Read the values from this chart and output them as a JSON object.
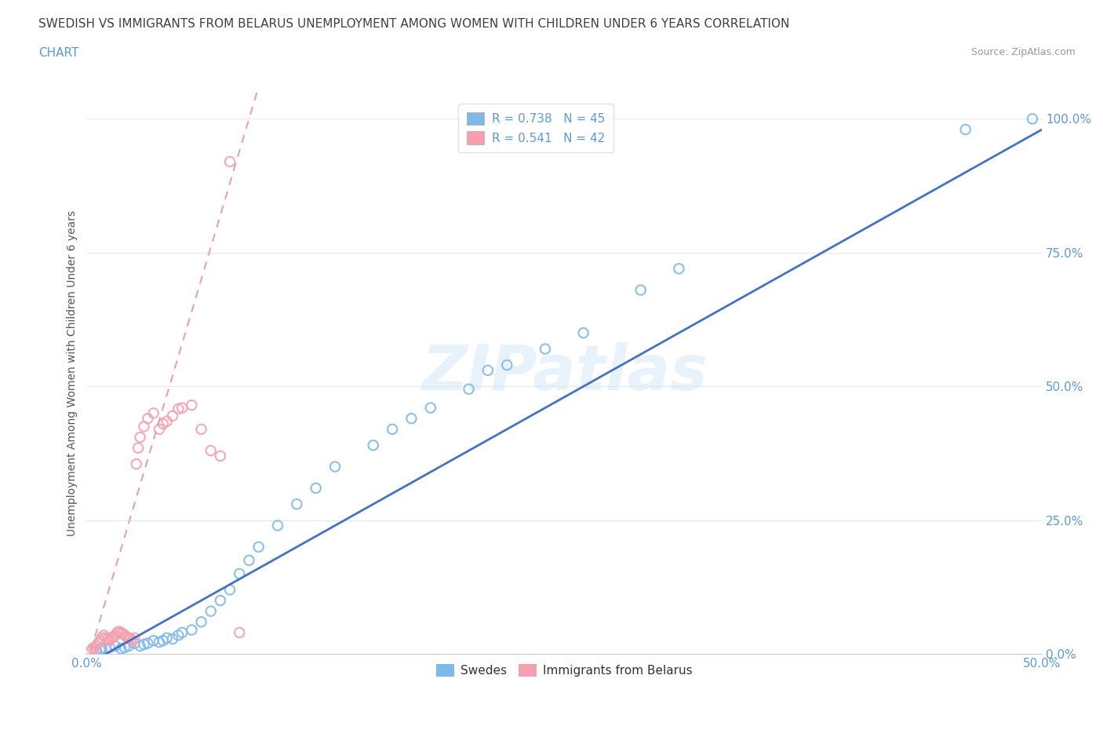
{
  "title_line1": "SWEDISH VS IMMIGRANTS FROM BELARUS UNEMPLOYMENT AMONG WOMEN WITH CHILDREN UNDER 6 YEARS CORRELATION",
  "title_line2": "CHART",
  "source": "Source: ZipAtlas.com",
  "ylabel": "Unemployment Among Women with Children Under 6 years",
  "xlim": [
    0,
    0.5
  ],
  "ylim": [
    0,
    1.05
  ],
  "ytick_labels": [
    "0.0%",
    "25.0%",
    "50.0%",
    "75.0%",
    "100.0%"
  ],
  "xtick_labels": [
    "0.0%",
    "",
    "",
    "",
    "",
    "50.0%"
  ],
  "watermark": "ZIPatlas",
  "swedes_color": "#7eb9e8",
  "belarus_color": "#f4a0b0",
  "trend_swedes_color": "#4472c4",
  "trend_belarus_color": "#e8a0b0",
  "R_swedes": 0.738,
  "N_swedes": 45,
  "R_belarus": 0.541,
  "N_belarus": 42,
  "swedes_x": [
    0.005,
    0.007,
    0.008,
    0.01,
    0.012,
    0.015,
    0.018,
    0.02,
    0.022,
    0.025,
    0.028,
    0.03,
    0.032,
    0.035,
    0.038,
    0.04,
    0.042,
    0.045,
    0.048,
    0.05,
    0.055,
    0.06,
    0.065,
    0.07,
    0.075,
    0.08,
    0.085,
    0.09,
    0.1,
    0.11,
    0.12,
    0.13,
    0.15,
    0.16,
    0.17,
    0.18,
    0.2,
    0.21,
    0.22,
    0.24,
    0.26,
    0.29,
    0.31,
    0.46,
    0.495
  ],
  "swedes_y": [
    0.005,
    0.008,
    0.01,
    0.01,
    0.012,
    0.015,
    0.01,
    0.012,
    0.015,
    0.02,
    0.015,
    0.018,
    0.02,
    0.025,
    0.022,
    0.025,
    0.03,
    0.028,
    0.035,
    0.04,
    0.045,
    0.06,
    0.08,
    0.1,
    0.12,
    0.15,
    0.175,
    0.2,
    0.24,
    0.28,
    0.31,
    0.35,
    0.39,
    0.42,
    0.44,
    0.46,
    0.495,
    0.53,
    0.54,
    0.57,
    0.6,
    0.68,
    0.72,
    0.98,
    1.0
  ],
  "belarus_x": [
    0.002,
    0.003,
    0.004,
    0.005,
    0.006,
    0.007,
    0.008,
    0.009,
    0.01,
    0.011,
    0.012,
    0.013,
    0.014,
    0.015,
    0.016,
    0.017,
    0.018,
    0.019,
    0.02,
    0.021,
    0.022,
    0.023,
    0.024,
    0.025,
    0.026,
    0.027,
    0.028,
    0.03,
    0.032,
    0.035,
    0.038,
    0.04,
    0.042,
    0.045,
    0.048,
    0.05,
    0.055,
    0.06,
    0.065,
    0.07,
    0.075,
    0.08
  ],
  "belarus_y": [
    0.005,
    0.01,
    0.012,
    0.015,
    0.02,
    0.025,
    0.03,
    0.035,
    0.03,
    0.028,
    0.025,
    0.03,
    0.032,
    0.035,
    0.04,
    0.042,
    0.04,
    0.038,
    0.035,
    0.032,
    0.03,
    0.028,
    0.025,
    0.03,
    0.355,
    0.385,
    0.405,
    0.425,
    0.44,
    0.45,
    0.42,
    0.43,
    0.435,
    0.445,
    0.458,
    0.46,
    0.465,
    0.42,
    0.38,
    0.37,
    0.92,
    0.04
  ],
  "background_color": "#ffffff",
  "grid_color": "#e8e8e8",
  "axis_label_color": "#5b9bd5",
  "title_color": "#404040",
  "legend_text_color": "#5b9bd5"
}
